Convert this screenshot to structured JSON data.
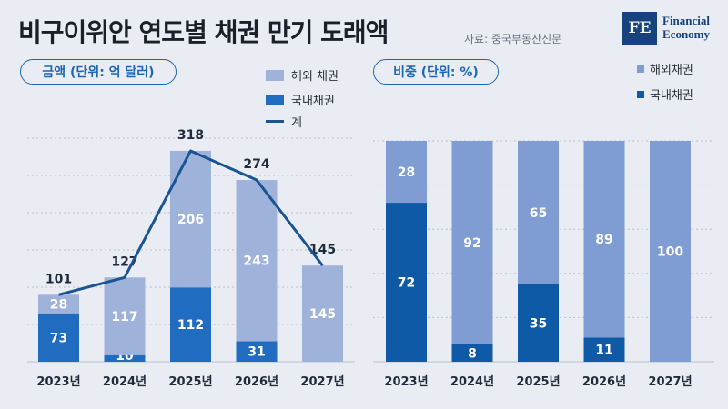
{
  "header": {
    "title": "비구이위안 연도별 채권 만기 도래액",
    "source": "자료: 중국부동산신문",
    "logo_mark": "FE",
    "logo_line1": "Financial",
    "logo_line2": "Economy"
  },
  "colors": {
    "overseas_left": "#9fb2da",
    "domestic_left": "#1f6cc1",
    "total_line": "#1a5493",
    "overseas_right": "#7f9dd2",
    "domestic_right": "#0f5aa6",
    "gridline": "#b9c0cc"
  },
  "chart_data": [
    {
      "type": "bar",
      "stacked": true,
      "title": "금액 (단위: 억 달러)",
      "categories": [
        "2023년",
        "2024년",
        "2025년",
        "2026년",
        "2027년"
      ],
      "series": [
        {
          "name": "국내채권",
          "values": [
            73,
            10,
            112,
            31,
            0
          ]
        },
        {
          "name": "해외 채권",
          "values": [
            28,
            117,
            206,
            243,
            145
          ]
        },
        {
          "name": "계",
          "type": "line",
          "values": [
            101,
            127,
            318,
            274,
            145
          ]
        }
      ],
      "ylim": [
        0,
        370
      ],
      "grid": true,
      "legend_position": "top-right"
    },
    {
      "type": "bar",
      "stacked": true,
      "title": "비중 (단위: %)",
      "categories": [
        "2023년",
        "2024년",
        "2025년",
        "2026년",
        "2027년"
      ],
      "series": [
        {
          "name": "국내채권",
          "values": [
            72,
            8,
            35,
            11,
            0
          ]
        },
        {
          "name": "해외채권",
          "values": [
            28,
            92,
            65,
            89,
            100
          ]
        }
      ],
      "ylim": [
        0,
        100
      ],
      "grid": true,
      "legend_position": "top-right"
    }
  ]
}
